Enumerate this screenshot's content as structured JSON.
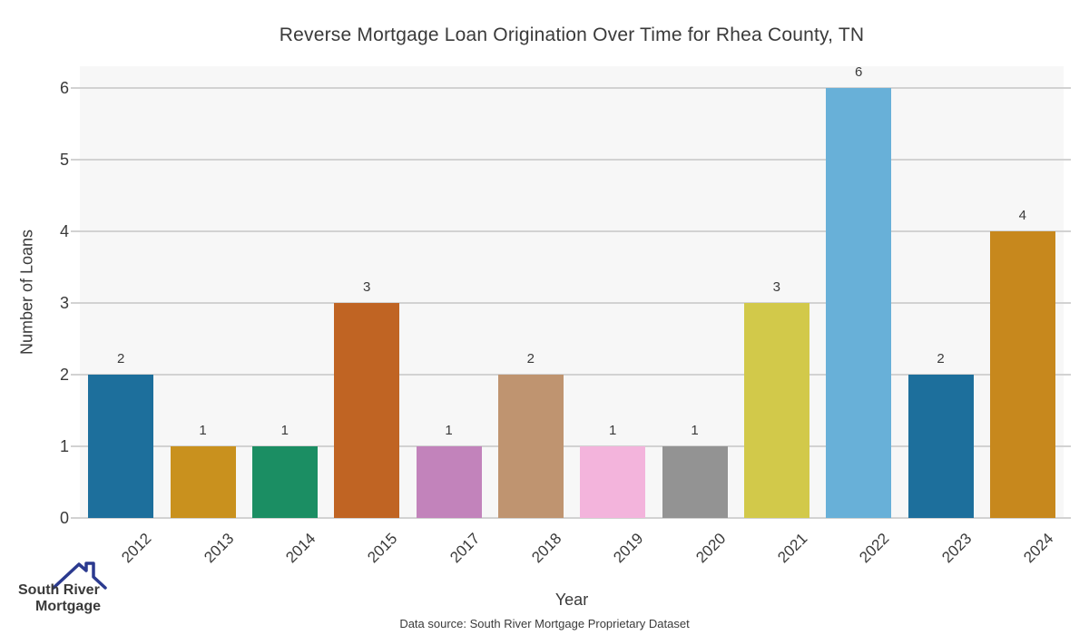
{
  "title": "Reverse Mortgage Loan Origination Over Time for Rhea County, TN",
  "chart_data": {
    "type": "bar",
    "title": "Reverse Mortgage Loan Origination Over Time for Rhea County, TN",
    "xlabel": "Year",
    "ylabel": "Number of Loans",
    "categories": [
      "2012",
      "2013",
      "2014",
      "2015",
      "2017",
      "2018",
      "2019",
      "2020",
      "2021",
      "2022",
      "2023",
      "2024"
    ],
    "values": [
      2,
      1,
      1,
      3,
      1,
      2,
      1,
      1,
      3,
      6,
      2,
      4
    ],
    "bar_colors": [
      "#1d6f9c",
      "#c9911e",
      "#1b8e63",
      "#c06423",
      "#c283bb",
      "#bf9470",
      "#f3b4dc",
      "#939393",
      "#d2c94a",
      "#68b0d8",
      "#1d6f9c",
      "#c7881d"
    ],
    "yticks": [
      0,
      1,
      2,
      3,
      4,
      5,
      6
    ],
    "ylim": [
      0,
      6.3
    ],
    "grid": "horizontal-only",
    "legend": "none",
    "value_labels_shown": true,
    "plot_bg_color": "#f7f7f7",
    "grid_color": "#d2d2d2"
  },
  "footer": {
    "source": "Data source: South River Mortgage Proprietary Dataset"
  },
  "logo": {
    "icon": "house-roof-icon",
    "line1": "South River",
    "line2": "Mortgage",
    "line1_color": "#4c6eba",
    "line2_color": "#2b3a8f"
  }
}
